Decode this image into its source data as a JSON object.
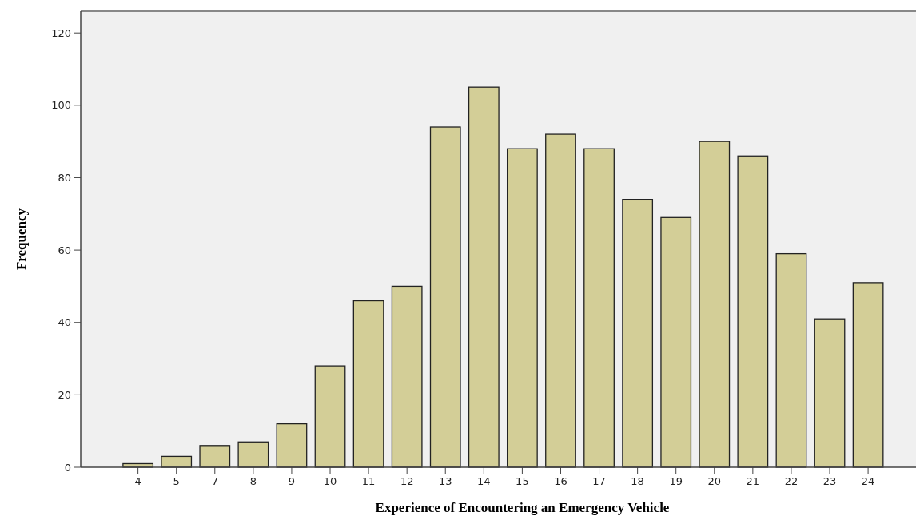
{
  "chart_data": {
    "type": "bar",
    "xlabel": "Experience of Encountering an Emergency Vehicle",
    "ylabel": "Frequency",
    "categories": [
      "4",
      "5",
      "7",
      "8",
      "9",
      "10",
      "11",
      "12",
      "13",
      "14",
      "15",
      "16",
      "17",
      "18",
      "19",
      "20",
      "21",
      "22",
      "23",
      "24"
    ],
    "values": [
      1,
      3,
      6,
      7,
      12,
      28,
      46,
      50,
      94,
      105,
      88,
      92,
      88,
      74,
      69,
      90,
      86,
      59,
      41,
      51
    ],
    "color": "#d3ce97",
    "ylim": [
      0,
      126
    ],
    "yticks": [
      0,
      20,
      40,
      60,
      80,
      100,
      120
    ],
    "grid": false
  }
}
